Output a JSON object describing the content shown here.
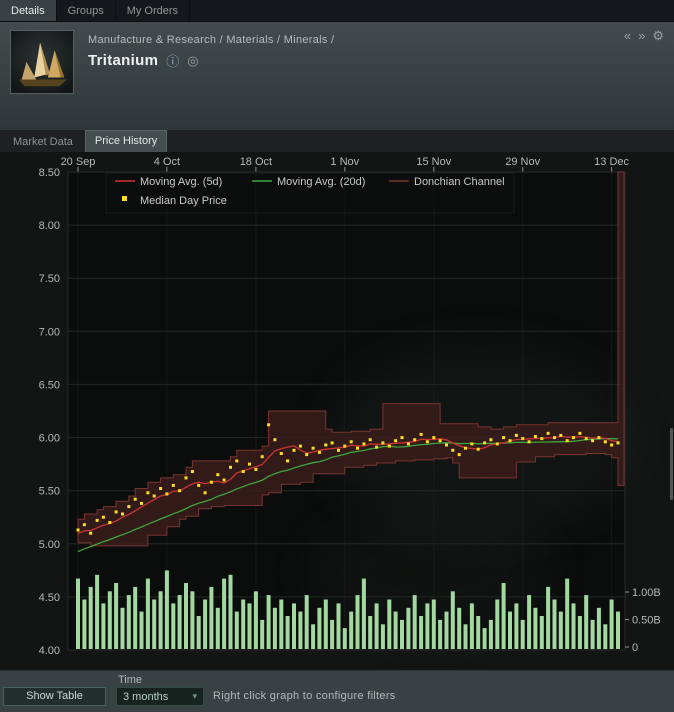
{
  "colors": {
    "region_bg": "#121514",
    "plot_bg": "#0b0d0c",
    "grid": "#232823",
    "axis_text": "#b4baba",
    "donchian_fill": "#3a1d1b",
    "volume_bars": "#a3d8a0"
  },
  "icons": {
    "info": "ⓘ",
    "open_window": "◎",
    "nav_back": "«",
    "nav_forward": "»",
    "settings_gear": "⚙",
    "chevron_down": "▾"
  },
  "window_tabs": [
    {
      "label": "Details",
      "active": true
    },
    {
      "label": "Groups",
      "active": false
    },
    {
      "label": "My Orders",
      "active": false
    }
  ],
  "header": {
    "breadcrumb": "Manufacture & Research / Materials / Minerals /",
    "title": "Tritanium"
  },
  "view_tabs": [
    {
      "label": "Market Data",
      "active": false
    },
    {
      "label": "Price History",
      "active": true
    }
  ],
  "chart_data": {
    "type": "line",
    "title": "",
    "x_axis": {
      "tick_labels": [
        "20 Sep",
        "4 Oct",
        "18 Oct",
        "1 Nov",
        "15 Nov",
        "29 Nov",
        "13 Dec"
      ],
      "tick_days": [
        0,
        14,
        28,
        42,
        56,
        70,
        84
      ]
    },
    "y_axis_price": {
      "min": 4.0,
      "max": 8.5,
      "tick_labels": [
        "8.50",
        "8.00",
        "7.50",
        "7.00",
        "6.50",
        "6.00",
        "5.50",
        "5.00",
        "4.50",
        "4.00"
      ]
    },
    "y_axis_volume": {
      "tick_labels": [
        "1.00B",
        "0.50B",
        "0"
      ],
      "tick_values": [
        1.0,
        0.5,
        0
      ]
    },
    "legend": [
      {
        "label": "Moving Avg. (5d)",
        "color": "#cc3434",
        "marker": "line"
      },
      {
        "label": "Moving Avg. (20d)",
        "color": "#3fa53f",
        "marker": "line"
      },
      {
        "label": "Donchian Channel",
        "color": "#7a3430",
        "marker": "line"
      },
      {
        "label": "Median Day Price",
        "color": "#ffdf1f",
        "marker": "square"
      }
    ],
    "donchian_window_days": 9,
    "series": {
      "pre_window_prices": [
        4.6,
        4.65,
        4.7,
        4.75,
        4.78,
        4.8,
        4.83,
        4.85,
        4.88,
        4.9,
        4.92,
        4.95,
        4.97,
        5.0,
        5.02,
        5.04,
        5.06,
        5.08,
        5.1,
        5.12
      ],
      "median_day_price": [
        5.13,
        5.18,
        5.1,
        5.22,
        5.25,
        5.2,
        5.3,
        5.28,
        5.35,
        5.42,
        5.38,
        5.48,
        5.45,
        5.52,
        5.47,
        5.55,
        5.5,
        5.62,
        5.68,
        5.55,
        5.48,
        5.58,
        5.65,
        5.6,
        5.72,
        5.78,
        5.68,
        5.75,
        5.7,
        5.82,
        6.12,
        5.98,
        5.85,
        5.78,
        5.88,
        5.92,
        5.84,
        5.9,
        5.86,
        5.93,
        5.95,
        5.88,
        5.92,
        5.96,
        5.9,
        5.94,
        5.98,
        5.91,
        5.95,
        5.92,
        5.97,
        6.0,
        5.94,
        5.98,
        6.03,
        5.96,
        6.0,
        5.97,
        5.93,
        5.88,
        5.84,
        5.9,
        5.94,
        5.89,
        5.95,
        5.98,
        5.94,
        6.0,
        5.97,
        6.02,
        5.99,
        5.96,
        6.01,
        5.99,
        6.04,
        6.0,
        6.02,
        5.97,
        6.0,
        6.04,
        5.99,
        5.97,
        6.0,
        5.96,
        5.93,
        5.95
      ],
      "day_high": [
        5.23,
        5.28,
        5.2,
        5.32,
        5.35,
        5.3,
        5.4,
        5.38,
        5.45,
        5.52,
        5.48,
        5.58,
        5.55,
        5.62,
        5.57,
        5.65,
        5.6,
        5.72,
        5.78,
        5.65,
        5.58,
        5.68,
        5.75,
        5.7,
        5.82,
        5.88,
        5.78,
        5.85,
        5.8,
        5.92,
        6.25,
        6.08,
        5.95,
        5.88,
        5.98,
        6.02,
        5.94,
        6.0,
        5.96,
        6.03,
        6.05,
        5.98,
        6.02,
        6.06,
        6.0,
        6.04,
        6.08,
        6.01,
        6.32,
        6.02,
        6.07,
        6.1,
        6.04,
        6.08,
        6.13,
        6.06,
        6.1,
        6.07,
        6.03,
        5.98,
        5.94,
        6.0,
        6.04,
        5.99,
        6.05,
        6.08,
        6.04,
        6.1,
        6.07,
        6.12,
        6.09,
        6.06,
        6.11,
        6.09,
        6.14,
        6.1,
        6.12,
        6.07,
        6.1,
        6.14,
        6.09,
        6.07,
        6.1,
        6.06,
        6.03,
        8.5
      ],
      "day_low": [
        5.01,
        5.06,
        4.98,
        5.1,
        5.13,
        5.08,
        5.18,
        5.16,
        5.23,
        5.3,
        5.26,
        5.36,
        5.33,
        5.4,
        5.35,
        5.43,
        5.38,
        5.5,
        5.56,
        5.43,
        5.36,
        5.46,
        5.53,
        5.48,
        5.6,
        5.66,
        5.56,
        5.63,
        5.58,
        5.7,
        6.0,
        5.86,
        5.73,
        5.66,
        5.76,
        5.8,
        5.72,
        5.78,
        5.74,
        5.81,
        5.83,
        5.76,
        5.8,
        5.84,
        5.78,
        5.82,
        5.86,
        5.79,
        5.83,
        5.8,
        5.85,
        5.88,
        5.82,
        5.86,
        5.91,
        5.84,
        5.88,
        5.85,
        5.81,
        5.76,
        5.62,
        5.78,
        5.82,
        5.77,
        5.83,
        5.86,
        5.82,
        5.88,
        5.85,
        5.9,
        5.87,
        5.84,
        5.89,
        5.87,
        5.92,
        5.88,
        5.9,
        5.85,
        5.88,
        5.92,
        5.87,
        5.85,
        5.88,
        5.84,
        5.81,
        5.55
      ],
      "volume_billions": [
        1.28,
        0.9,
        1.13,
        1.35,
        0.83,
        1.05,
        1.2,
        0.75,
        0.98,
        1.13,
        0.68,
        1.28,
        0.9,
        1.05,
        1.43,
        0.83,
        0.98,
        1.2,
        1.05,
        0.6,
        0.9,
        1.13,
        0.75,
        1.28,
        1.35,
        0.68,
        0.9,
        0.83,
        1.05,
        0.53,
        0.98,
        0.75,
        0.9,
        0.6,
        0.83,
        0.68,
        0.98,
        0.45,
        0.75,
        0.9,
        0.53,
        0.83,
        0.38,
        0.68,
        0.98,
        1.28,
        0.6,
        0.83,
        0.45,
        0.9,
        0.68,
        0.53,
        0.75,
        0.98,
        0.6,
        0.83,
        0.9,
        0.53,
        0.68,
        1.05,
        0.75,
        0.45,
        0.83,
        0.6,
        0.38,
        0.53,
        0.9,
        1.2,
        0.68,
        0.83,
        0.53,
        0.98,
        0.75,
        0.6,
        1.13,
        0.9,
        0.68,
        1.28,
        0.83,
        0.6,
        0.98,
        0.53,
        0.75,
        0.45,
        0.9,
        0.68
      ]
    }
  },
  "footer": {
    "show_table_button": "Show Table",
    "time_label": "Time",
    "time_dropdown_value": "3 months",
    "hint": "Right click graph to configure filters"
  }
}
